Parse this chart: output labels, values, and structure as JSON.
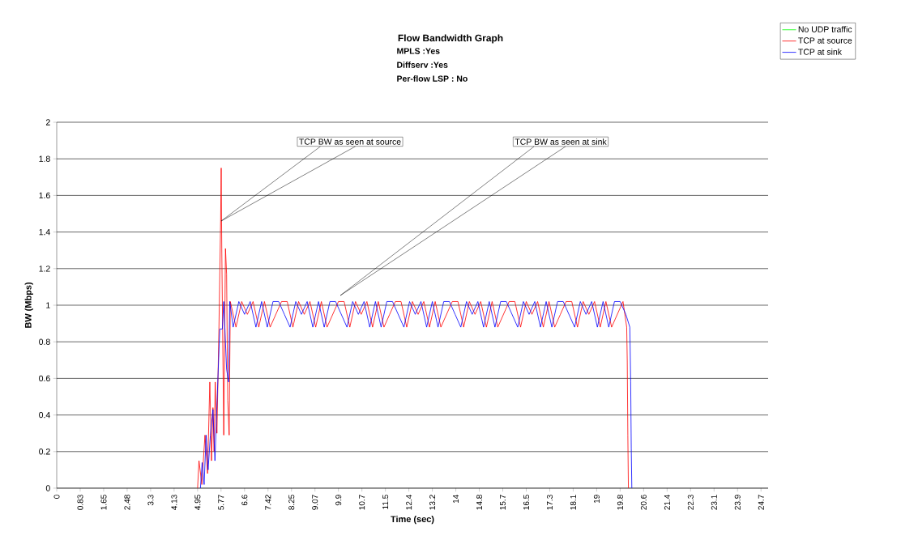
{
  "chart_data": {
    "type": "line",
    "title": "Flow Bandwidth Graph",
    "xlabel": "Time (sec)",
    "ylabel": "BW (Mbps)",
    "annotations": [
      "MPLS :Yes",
      "Diffserv :Yes",
      "Per-flow LSP : No",
      "TCP BW as seen at source",
      "TCP BW as seen at sink"
    ],
    "xlim": [
      0,
      25
    ],
    "ylim": [
      0,
      2
    ],
    "xticks": [
      0,
      {
        "value": 0.825,
        "label": "0.83"
      },
      1.65,
      {
        "value": 2.475,
        "label": "2.48"
      },
      3.3,
      {
        "value": 4.125,
        "label": "4.13"
      },
      4.95,
      {
        "value": 5.775,
        "label": "5.77"
      },
      6.6,
      {
        "value": 7.425,
        "label": "7.42"
      },
      8.25,
      {
        "value": 9.075,
        "label": "9.07"
      },
      9.9,
      {
        "value": 10.725,
        "label": "10.7"
      },
      {
        "value": 11.55,
        "label": "11.5"
      },
      {
        "value": 12.375,
        "label": "12.4"
      },
      13.2,
      {
        "value": 14.025,
        "label": "14"
      },
      {
        "value": 14.85,
        "label": "14.8"
      },
      {
        "value": 15.675,
        "label": "15.7"
      },
      16.5,
      {
        "value": 17.325,
        "label": "17.3"
      },
      {
        "value": 18.15,
        "label": "18.1"
      },
      {
        "value": 18.975,
        "label": "19"
      },
      19.8,
      {
        "value": 20.625,
        "label": "20.6"
      },
      {
        "value": 21.45,
        "label": "21.4"
      },
      {
        "value": 22.275,
        "label": "22.3"
      },
      23.1,
      {
        "value": 23.925,
        "label": "23.9"
      },
      {
        "value": 24.75,
        "label": "24.7"
      }
    ],
    "yticks": [
      0,
      0.2,
      0.4,
      0.6,
      0.8,
      1,
      1.2,
      1.4,
      1.6,
      1.8,
      2
    ],
    "grid": "y",
    "legend": "top right",
    "marker": "none",
    "series": [
      {
        "name": "No UDP traffic",
        "color": "#00ff00"
      },
      {
        "name": "TCP at source",
        "color": "#ff0000",
        "x": [
          4.95,
          5.0,
          5.1,
          5.21,
          5.3,
          5.38,
          5.44,
          5.49,
          5.53,
          5.57,
          5.63,
          5.7,
          5.76,
          5.78,
          5.8,
          5.87,
          5.93,
          5.97,
          6.01,
          6.06,
          6.1,
          6.3,
          6.5,
          6.7,
          6.9,
          7.1,
          7.3,
          7.5,
          7.7,
          7.9,
          8.1,
          8.3,
          8.5,
          8.7,
          8.9,
          9.1,
          9.3,
          9.5,
          9.7,
          9.9,
          10.1,
          10.3,
          10.5,
          10.7,
          10.9,
          11.1,
          11.3,
          11.5,
          11.7,
          11.9,
          12.1,
          12.3,
          12.5,
          12.7,
          12.9,
          13.1,
          13.3,
          13.5,
          13.7,
          13.9,
          14.1,
          14.3,
          14.5,
          14.7,
          14.9,
          15.1,
          15.3,
          15.5,
          15.7,
          15.9,
          16.1,
          16.3,
          16.5,
          16.7,
          16.9,
          17.1,
          17.3,
          17.5,
          17.7,
          17.9,
          18.1,
          18.3,
          18.5,
          18.7,
          18.9,
          19.1,
          19.3,
          19.5,
          19.7,
          19.9,
          20.03,
          20.05,
          20.07,
          20.09
        ],
        "values": [
          0,
          0.15,
          0.02,
          0.29,
          0.08,
          0.58,
          0.15,
          0.44,
          0.2,
          0.58,
          0.3,
          0.87,
          1.46,
          1.75,
          1.31,
          0.29,
          1.31,
          1.17,
          0.48,
          0.29,
          1.02,
          0.88,
          1.02,
          0.95,
          1.02,
          0.88,
          1.02,
          0.88,
          0.95,
          1.02,
          1.02,
          0.88,
          1.02,
          0.95,
          1.02,
          0.88,
          1.02,
          0.88,
          0.95,
          1.02,
          1.02,
          0.88,
          1.02,
          0.95,
          1.02,
          0.88,
          1.02,
          0.88,
          0.95,
          1.02,
          1.02,
          0.88,
          1.02,
          0.95,
          1.02,
          0.88,
          1.02,
          0.88,
          0.95,
          1.02,
          1.02,
          0.88,
          1.02,
          0.95,
          1.02,
          0.88,
          1.02,
          0.88,
          0.95,
          1.02,
          1.02,
          0.88,
          1.02,
          0.95,
          1.02,
          0.88,
          1.02,
          0.88,
          0.95,
          1.02,
          1.02,
          0.88,
          1.02,
          0.95,
          1.02,
          0.88,
          1.02,
          0.88,
          0.95,
          1.02,
          0.88,
          0.69,
          0.29,
          0
        ]
      },
      {
        "name": "TCP at sink",
        "color": "#0000ff",
        "x": [
          5.05,
          5.11,
          5.18,
          5.25,
          5.32,
          5.4,
          5.49,
          5.56,
          5.66,
          5.73,
          5.82,
          5.87,
          5.97,
          6.04,
          6.08,
          6.2,
          6.4,
          6.6,
          6.8,
          7.0,
          7.2,
          7.4,
          7.6,
          7.8,
          8.0,
          8.2,
          8.4,
          8.6,
          8.8,
          9.0,
          9.2,
          9.4,
          9.6,
          9.8,
          10.0,
          10.2,
          10.4,
          10.6,
          10.8,
          11.0,
          11.2,
          11.4,
          11.6,
          11.8,
          12.0,
          12.2,
          12.4,
          12.6,
          12.8,
          13.0,
          13.2,
          13.4,
          13.6,
          13.8,
          14.0,
          14.2,
          14.4,
          14.6,
          14.8,
          15.0,
          15.2,
          15.4,
          15.6,
          15.8,
          16.0,
          16.2,
          16.4,
          16.6,
          16.8,
          17.0,
          17.2,
          17.4,
          17.6,
          17.8,
          18.0,
          18.2,
          18.4,
          18.6,
          18.8,
          19.0,
          19.2,
          19.4,
          19.6,
          19.8,
          20.0,
          20.14,
          20.17,
          20.19,
          20.21
        ],
        "values": [
          0,
          0.14,
          0.02,
          0.29,
          0.1,
          0.29,
          0.43,
          0.15,
          0.58,
          0.87,
          0.87,
          1.02,
          0.65,
          0.58,
          1.02,
          0.88,
          1.02,
          0.95,
          1.02,
          0.88,
          1.02,
          0.88,
          1.02,
          1.02,
          0.95,
          0.88,
          1.02,
          0.95,
          1.02,
          0.88,
          1.02,
          0.88,
          1.02,
          1.02,
          0.95,
          0.88,
          1.02,
          0.95,
          1.02,
          0.88,
          1.02,
          0.88,
          1.02,
          1.02,
          0.95,
          0.88,
          1.02,
          0.95,
          1.02,
          0.88,
          1.02,
          0.88,
          1.02,
          1.02,
          0.95,
          0.88,
          1.02,
          0.95,
          1.02,
          0.88,
          1.02,
          0.88,
          1.02,
          1.02,
          0.95,
          0.88,
          1.02,
          0.95,
          1.02,
          0.88,
          1.02,
          0.88,
          1.02,
          1.02,
          0.95,
          0.88,
          1.02,
          0.95,
          1.02,
          0.88,
          1.02,
          0.88,
          1.02,
          1.02,
          0.95,
          0.88,
          0.58,
          0.22,
          0
        ]
      }
    ]
  }
}
